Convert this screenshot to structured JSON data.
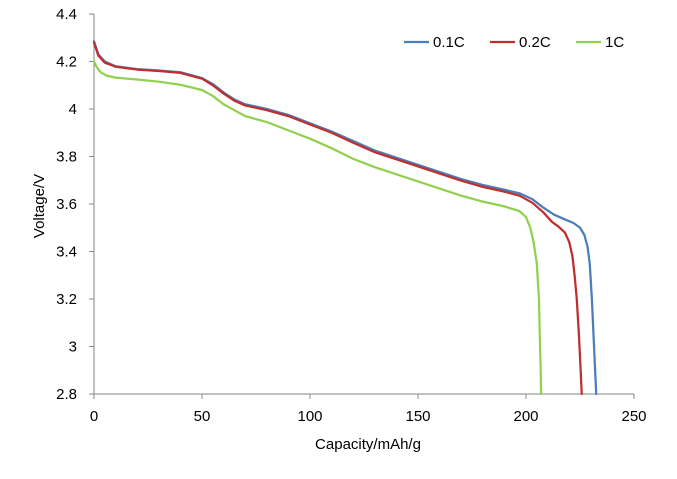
{
  "chart_data": {
    "type": "line",
    "title": "",
    "xlabel": "Capacity/mAh/g",
    "ylabel": "Voltage/V",
    "xlim": [
      0,
      250
    ],
    "ylim": [
      2.8,
      4.4
    ],
    "x_ticks": [
      "0",
      "50",
      "100",
      "150",
      "200",
      "250"
    ],
    "y_ticks": [
      "2.8",
      "3",
      "3.2",
      "3.4",
      "3.6",
      "3.8",
      "4",
      "4.2",
      "4.4"
    ],
    "grid": false,
    "legend_position": "top-right",
    "series": [
      {
        "name": "0.1C",
        "color": "#4a7ebb",
        "points": [
          [
            0,
            4.285
          ],
          [
            2,
            4.23
          ],
          [
            5,
            4.2
          ],
          [
            10,
            4.18
          ],
          [
            20,
            4.168
          ],
          [
            30,
            4.162
          ],
          [
            40,
            4.155
          ],
          [
            50,
            4.13
          ],
          [
            55,
            4.105
          ],
          [
            60,
            4.07
          ],
          [
            65,
            4.04
          ],
          [
            70,
            4.02
          ],
          [
            80,
            4.0
          ],
          [
            90,
            3.975
          ],
          [
            100,
            3.94
          ],
          [
            110,
            3.905
          ],
          [
            120,
            3.865
          ],
          [
            130,
            3.825
          ],
          [
            140,
            3.795
          ],
          [
            150,
            3.765
          ],
          [
            160,
            3.735
          ],
          [
            170,
            3.705
          ],
          [
            180,
            3.68
          ],
          [
            190,
            3.66
          ],
          [
            197,
            3.645
          ],
          [
            203,
            3.62
          ],
          [
            208,
            3.585
          ],
          [
            213,
            3.555
          ],
          [
            218,
            3.535
          ],
          [
            222,
            3.52
          ],
          [
            225,
            3.5
          ],
          [
            227,
            3.47
          ],
          [
            228.5,
            3.42
          ],
          [
            229.5,
            3.35
          ],
          [
            230.5,
            3.2
          ],
          [
            231.5,
            3.0
          ],
          [
            232,
            2.9
          ],
          [
            232.5,
            2.8
          ]
        ]
      },
      {
        "name": "0.2C",
        "color": "#be2f2f",
        "points": [
          [
            0,
            4.28
          ],
          [
            2,
            4.225
          ],
          [
            5,
            4.195
          ],
          [
            10,
            4.178
          ],
          [
            20,
            4.166
          ],
          [
            30,
            4.16
          ],
          [
            40,
            4.152
          ],
          [
            50,
            4.128
          ],
          [
            55,
            4.1
          ],
          [
            60,
            4.065
          ],
          [
            65,
            4.035
          ],
          [
            70,
            4.015
          ],
          [
            80,
            3.995
          ],
          [
            90,
            3.97
          ],
          [
            100,
            3.935
          ],
          [
            110,
            3.9
          ],
          [
            120,
            3.858
          ],
          [
            130,
            3.818
          ],
          [
            140,
            3.788
          ],
          [
            150,
            3.758
          ],
          [
            160,
            3.728
          ],
          [
            170,
            3.698
          ],
          [
            180,
            3.672
          ],
          [
            190,
            3.652
          ],
          [
            197,
            3.635
          ],
          [
            203,
            3.605
          ],
          [
            208,
            3.565
          ],
          [
            212,
            3.525
          ],
          [
            215,
            3.505
          ],
          [
            218,
            3.48
          ],
          [
            220,
            3.44
          ],
          [
            221.5,
            3.38
          ],
          [
            222.5,
            3.3
          ],
          [
            223.5,
            3.2
          ],
          [
            224.5,
            3.05
          ],
          [
            225.3,
            2.9
          ],
          [
            225.8,
            2.8
          ]
        ]
      },
      {
        "name": "1C",
        "color": "#92d050",
        "points": [
          [
            0,
            4.2
          ],
          [
            1,
            4.18
          ],
          [
            3,
            4.155
          ],
          [
            6,
            4.14
          ],
          [
            10,
            4.132
          ],
          [
            20,
            4.124
          ],
          [
            30,
            4.115
          ],
          [
            40,
            4.102
          ],
          [
            50,
            4.08
          ],
          [
            55,
            4.055
          ],
          [
            60,
            4.02
          ],
          [
            65,
            3.995
          ],
          [
            70,
            3.97
          ],
          [
            80,
            3.945
          ],
          [
            90,
            3.91
          ],
          [
            100,
            3.875
          ],
          [
            110,
            3.835
          ],
          [
            120,
            3.79
          ],
          [
            130,
            3.755
          ],
          [
            140,
            3.725
          ],
          [
            150,
            3.695
          ],
          [
            160,
            3.665
          ],
          [
            170,
            3.635
          ],
          [
            180,
            3.61
          ],
          [
            190,
            3.59
          ],
          [
            197,
            3.57
          ],
          [
            200,
            3.545
          ],
          [
            202,
            3.5
          ],
          [
            203.5,
            3.44
          ],
          [
            205,
            3.35
          ],
          [
            206,
            3.2
          ],
          [
            206.5,
            3.0
          ],
          [
            206.8,
            2.9
          ],
          [
            207,
            2.8
          ]
        ]
      }
    ]
  }
}
